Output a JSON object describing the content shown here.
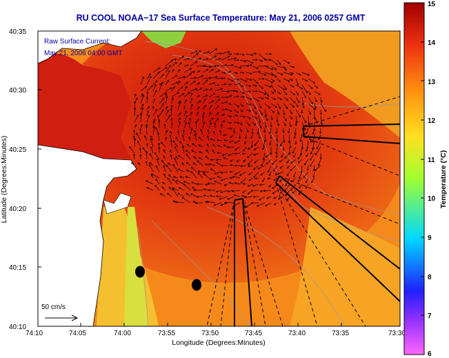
{
  "title": "RU COOL  NOAA−17  Sea Surface Temperature:  May 21, 2006 0257 GMT",
  "legend": {
    "line1": "Raw Surface Current:",
    "line2": "May 21, 2006 04:00 GMT",
    "scale_label": "50 cm/s"
  },
  "axes": {
    "xlabel": "Longitude (Degrees:Minutes)",
    "ylabel": "Latitude (Degrees:Minutes)",
    "xticks": [
      "74:10",
      "74:05",
      "74:00",
      "73:55",
      "73:50",
      "73:45",
      "73:40",
      "73:35",
      "73:30"
    ],
    "yticks": [
      "40:35",
      "40:30",
      "40:25",
      "40:20",
      "40:15",
      "40:10"
    ]
  },
  "colorbar": {
    "label": "Temperature (°C)",
    "ticks": [
      "15",
      "14",
      "13",
      "12",
      "11",
      "10",
      "9",
      "8",
      "7",
      "6"
    ],
    "min": 6,
    "max": 15
  },
  "colors": {
    "title": "#0000a0",
    "land": "#ffffff",
    "warm_sst": "#d82010",
    "cool_sst": "#f0d020",
    "arrows": "#000000"
  }
}
